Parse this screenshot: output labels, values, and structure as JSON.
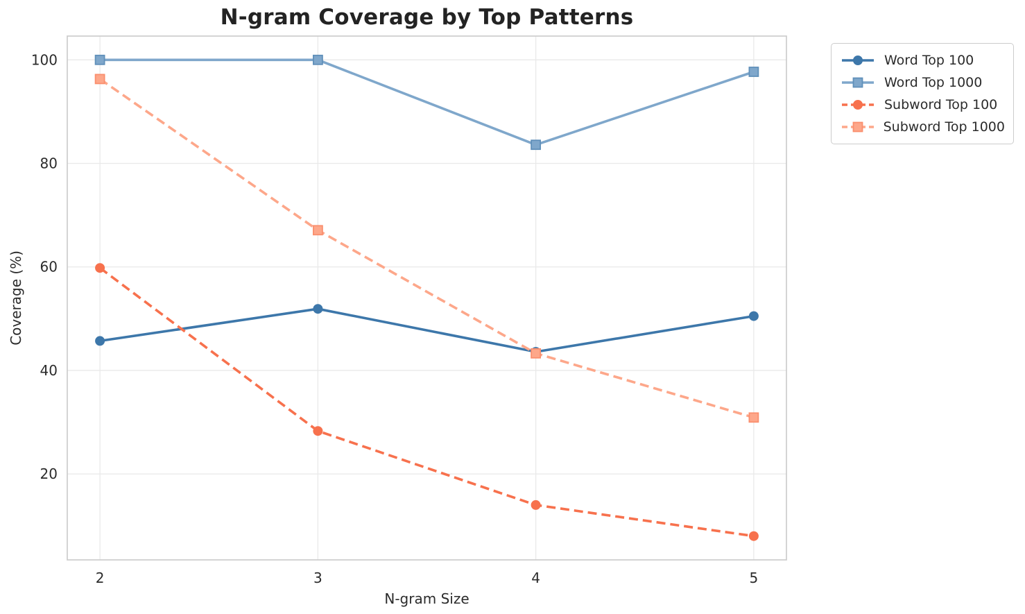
{
  "title": "N-gram Coverage by Top Patterns",
  "chart_data": {
    "type": "line",
    "x": [
      2,
      3,
      4,
      5
    ],
    "xticks": [
      2,
      3,
      4,
      5
    ],
    "yticks": [
      20,
      40,
      60,
      80,
      100
    ],
    "xlabel": "N-gram Size",
    "ylabel": "Coverage (%)",
    "xlim": [
      1.85,
      5.15
    ],
    "ylim": [
      3.4,
      104.6
    ],
    "grid": true,
    "legend_position": "upper right, outside plot area",
    "series": [
      {
        "name": "Word Top 100",
        "values": [
          45.7,
          51.9,
          43.6,
          50.5
        ],
        "color": "#3d77aa",
        "marker_edge": "#3d77aa",
        "line_style": "solid",
        "marker": "circle"
      },
      {
        "name": "Word Top 1000",
        "values": [
          100.0,
          100.0,
          83.6,
          97.7
        ],
        "color": "#7fa7cb",
        "marker_edge": "#6090ba",
        "line_style": "solid",
        "marker": "square"
      },
      {
        "name": "Subword Top 100",
        "values": [
          59.8,
          28.3,
          14.0,
          8.0
        ],
        "color": "#f7714d",
        "marker_edge": "#f7714d",
        "line_style": "dashed",
        "marker": "circle"
      },
      {
        "name": "Subword Top 1000",
        "values": [
          96.3,
          67.1,
          43.3,
          30.9
        ],
        "color": "#fda78a",
        "marker_edge": "#fa8f6e",
        "line_style": "dashed",
        "marker": "square"
      }
    ]
  },
  "colors": {
    "background": "#ffffff",
    "grid": "#e9e9e9",
    "spine": "#cccccc",
    "tick_text": "#2b2b2b",
    "title_text": "#232323",
    "legend_border": "#cccccc"
  }
}
